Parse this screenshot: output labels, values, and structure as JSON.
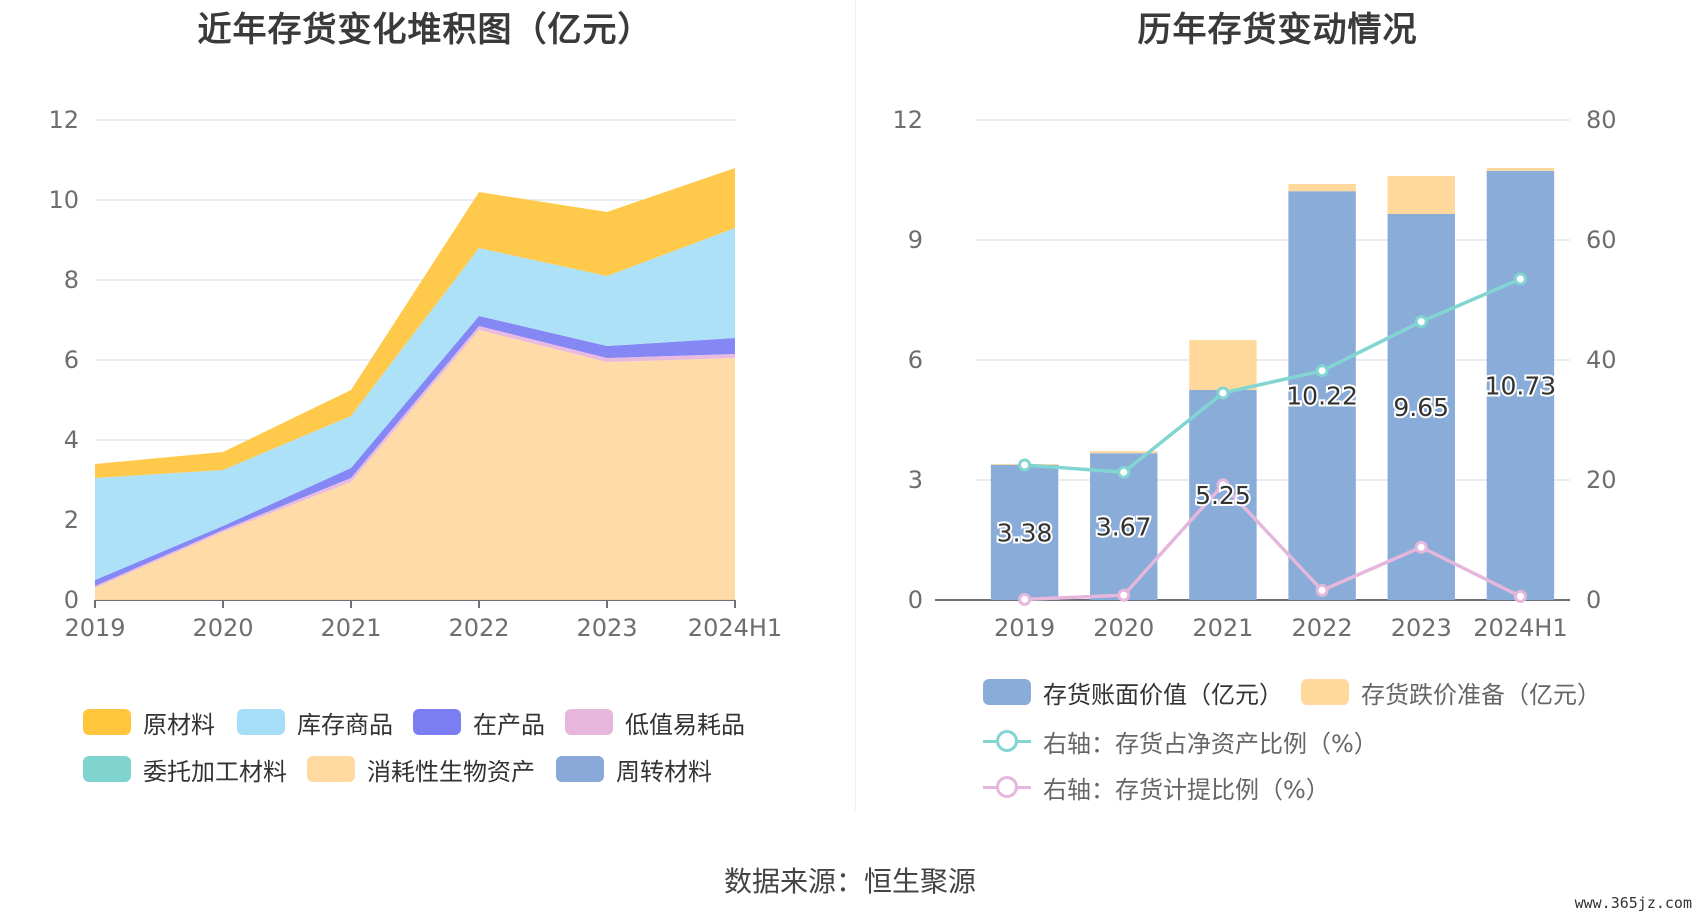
{
  "titles": {
    "left": "近年存货变化堆积图（亿元）",
    "right": "历年存货变动情况"
  },
  "source_text": "数据来源：恒生聚源",
  "watermark": "www.365jz.com",
  "chart_data": [
    {
      "type": "area",
      "title": "近年存货变化堆积图（亿元）",
      "categories": [
        "2019",
        "2020",
        "2021",
        "2022",
        "2023",
        "2024H1"
      ],
      "ylim": [
        0,
        12
      ],
      "yticks": [
        "0",
        "2",
        "4",
        "6",
        "8",
        "10",
        "12"
      ],
      "grid": true,
      "legend_position": "bottom",
      "stack_order": [
        "消耗性生物资产",
        "低值易耗品",
        "在产品",
        "库存商品",
        "原材料"
      ],
      "series": [
        {
          "name": "原材料",
          "color": "#ffc53d",
          "values": [
            0.35,
            0.45,
            0.65,
            1.4,
            1.6,
            1.5
          ]
        },
        {
          "name": "库存商品",
          "color": "#a6def7",
          "values": [
            2.55,
            1.4,
            1.3,
            1.7,
            1.75,
            2.75
          ]
        },
        {
          "name": "在产品",
          "color": "#7b7df3",
          "values": [
            0.15,
            0.1,
            0.25,
            0.25,
            0.3,
            0.4
          ]
        },
        {
          "name": "低值易耗品",
          "color": "#e7b6dc",
          "values": [
            0.05,
            0.05,
            0.1,
            0.1,
            0.1,
            0.1
          ]
        },
        {
          "name": "委托加工材料",
          "color": "#80d4d0",
          "values": [
            0,
            0,
            0,
            0,
            0,
            0
          ]
        },
        {
          "name": "消耗性生物资产",
          "color": "#ffd9a0",
          "values": [
            0.3,
            1.7,
            2.95,
            6.75,
            5.95,
            6.05
          ]
        },
        {
          "name": "周转材料",
          "color": "#8aa8d8",
          "values": [
            0,
            0,
            0,
            0,
            0,
            0
          ]
        }
      ]
    },
    {
      "type": "bar",
      "title": "历年存货变动情况",
      "categories": [
        "2019",
        "2020",
        "2021",
        "2022",
        "2023",
        "2024H1"
      ],
      "ylim": [
        0,
        12
      ],
      "yticks": [
        "0",
        "3",
        "6",
        "9",
        "12"
      ],
      "y2lim": [
        0,
        80
      ],
      "y2ticks": [
        "0",
        "20",
        "40",
        "60",
        "80"
      ],
      "grid": true,
      "legend_position": "bottom",
      "series": [
        {
          "name": "存货账面价值（亿元）",
          "color": "#8aacd9",
          "stack": "a",
          "values": [
            3.38,
            3.67,
            5.25,
            10.22,
            9.65,
            10.73
          ],
          "labels": [
            "3.38",
            "3.67",
            "5.25",
            "10.22",
            "9.65",
            "10.73"
          ]
        },
        {
          "name": "存货跌价准备（亿元）",
          "color": "#ffd99b",
          "stack": "a",
          "values": [
            0.02,
            0.05,
            1.25,
            0.18,
            0.95,
            0.07
          ]
        },
        {
          "name": "右轴：存货占净资产比例（%）",
          "color": "#82d5d2",
          "type": "line",
          "axis": "right",
          "values": [
            22.5,
            21.3,
            34.5,
            38.2,
            46.4,
            53.5
          ]
        },
        {
          "name": "右轴：存货计提比例（%）",
          "color": "#e6b7dc",
          "type": "line",
          "axis": "right",
          "values": [
            0.1,
            0.8,
            19.2,
            1.6,
            8.8,
            0.6
          ]
        }
      ]
    }
  ]
}
